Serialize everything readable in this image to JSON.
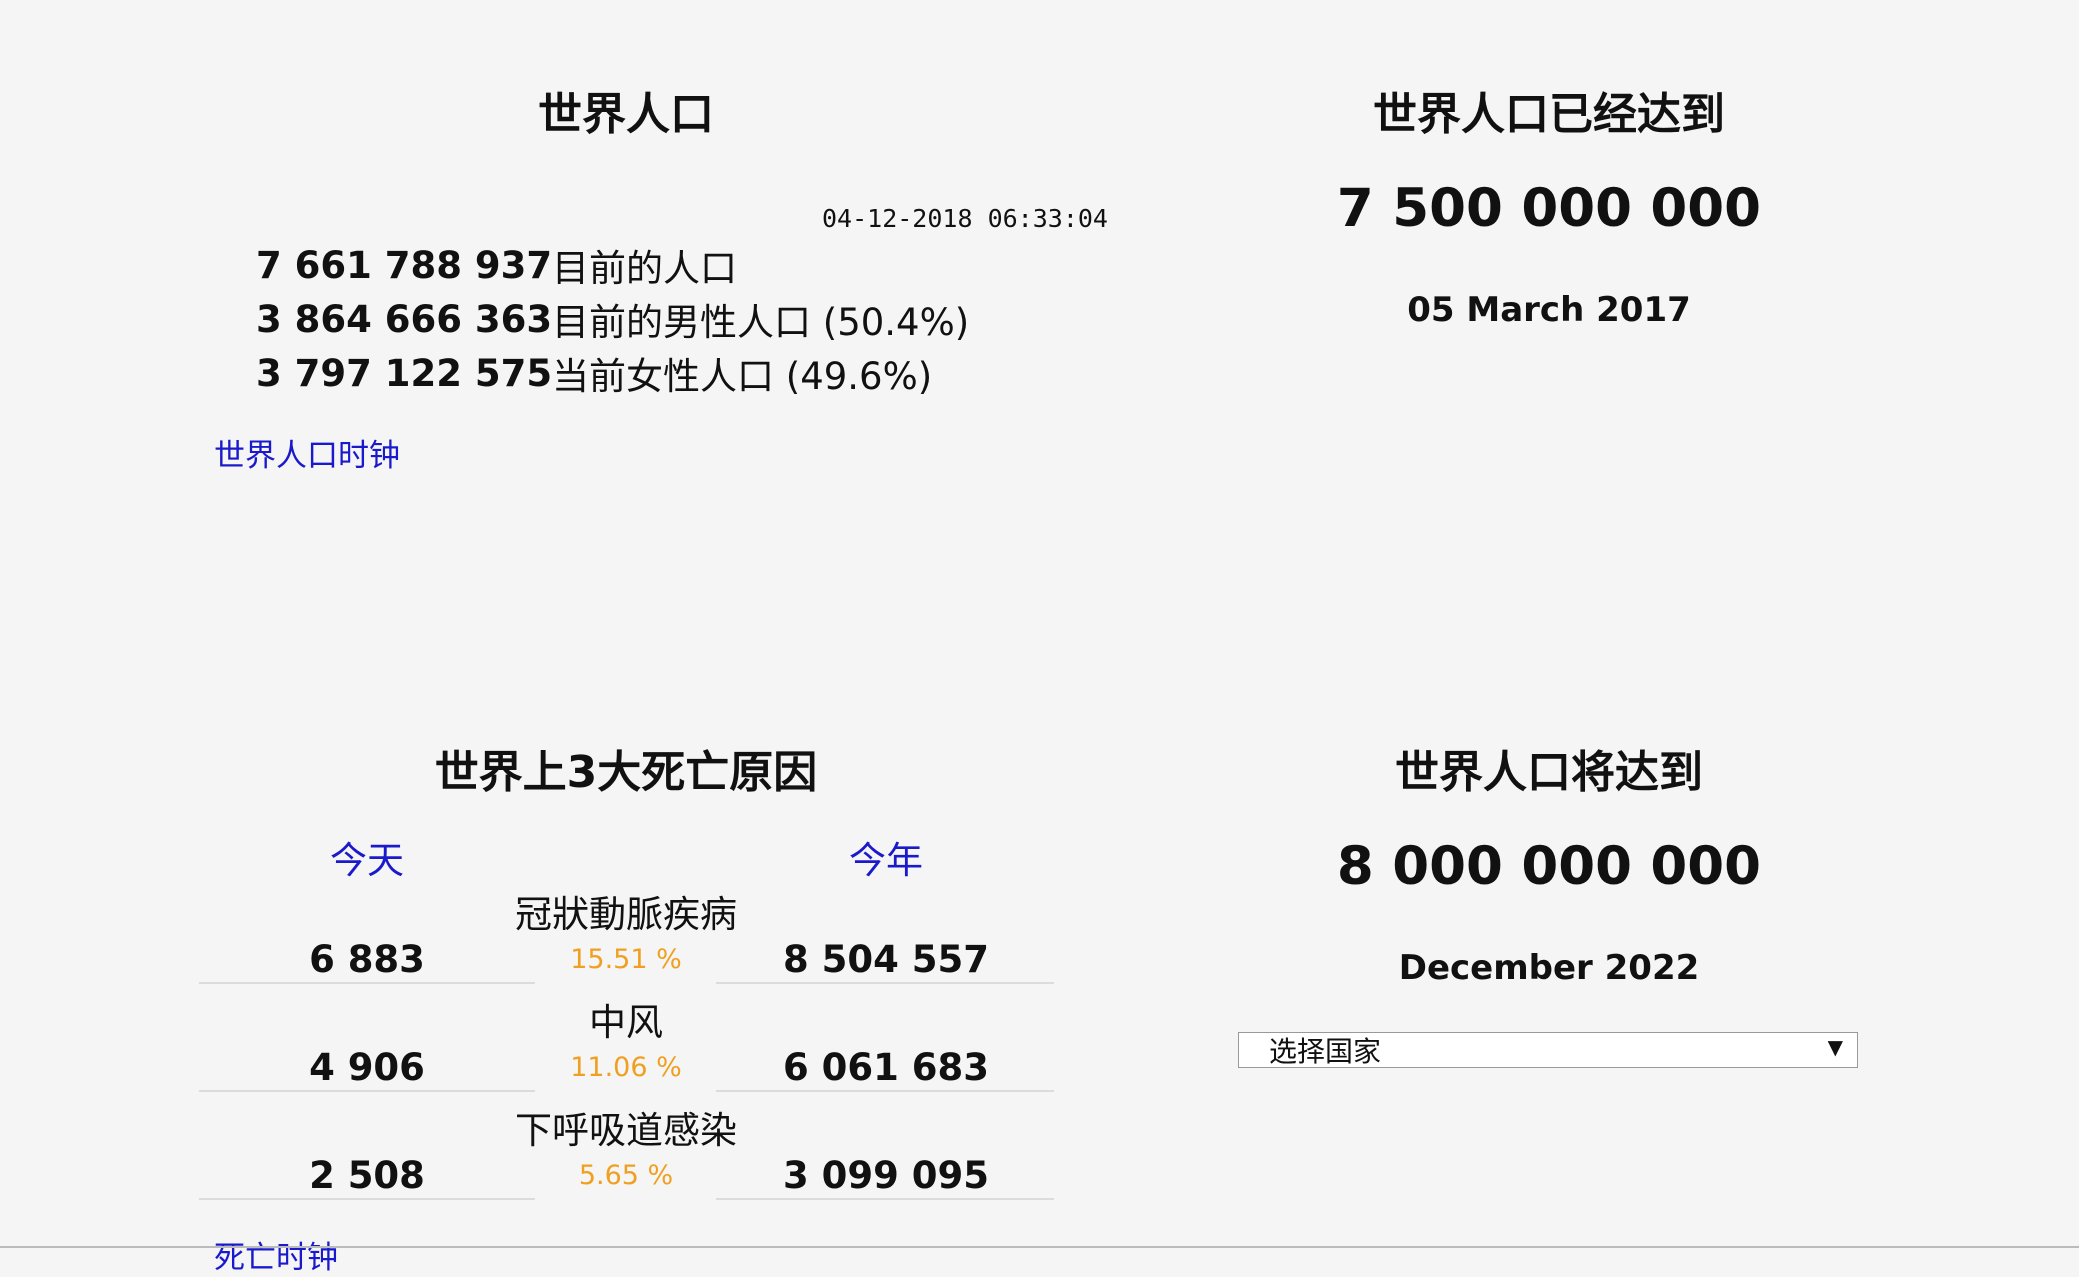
{
  "world_population": {
    "title": "世界人口",
    "timestamp": "04-12-2018 06:33:04",
    "rows": [
      {
        "value": "7 661 788 937",
        "label": "目前的人口"
      },
      {
        "value": "3 864 666 363",
        "label": "目前的男性人口 (50.4%)"
      },
      {
        "value": "3 797 122 575",
        "label": "当前女性人口 (49.6%)"
      }
    ],
    "clock_link": "世界人口时钟"
  },
  "reached": {
    "title": "世界人口已经达到",
    "value": "7 500 000 000",
    "date": "05 March 2017"
  },
  "death_causes": {
    "title": "世界上3大死亡原因",
    "col_today": "今天",
    "col_year": "今年",
    "causes": [
      {
        "name": "冠狀動脈疾病",
        "today": "6 883",
        "percent": "15.51 %",
        "year": "8 504 557"
      },
      {
        "name": "中风",
        "today": "4 906",
        "percent": "11.06 %",
        "year": "6 061 683"
      },
      {
        "name": "下呼吸道感染",
        "today": "2 508",
        "percent": "5.65 %",
        "year": "3 099 095"
      }
    ],
    "clock_link": "死亡时钟"
  },
  "will_reach": {
    "title": "世界人口将达到",
    "value": "8 000 000 000",
    "date": "December 2022",
    "country_select": {
      "selected": "选择国家",
      "arrow": "▼"
    }
  },
  "colors": {
    "link": "#1a1acc",
    "percent": "#f0a020",
    "background": "#f5f5f5"
  }
}
